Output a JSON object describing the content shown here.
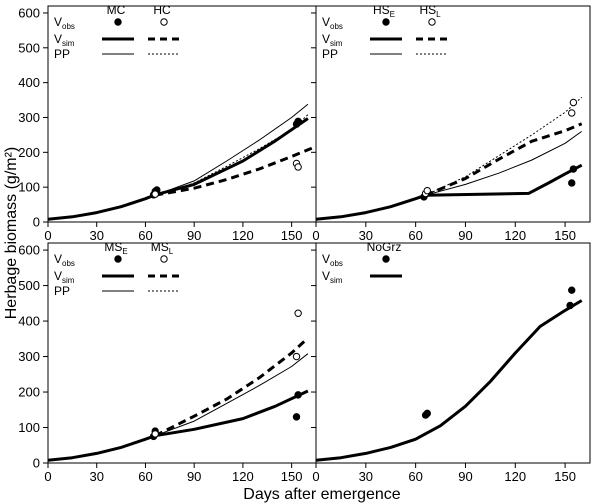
{
  "figure": {
    "ylabel": "Herbage biomass (g/m²)",
    "xlabel": "Days after emergence"
  },
  "chart_data": [
    {
      "type": "line",
      "panel": "top-left",
      "xlim": [
        0,
        165
      ],
      "ylim": [
        0,
        620
      ],
      "xticks": [
        0,
        30,
        60,
        90,
        120,
        150
      ],
      "yticks": [
        0,
        100,
        200,
        300,
        400,
        500,
        600
      ],
      "legend": {
        "placement": "top-left",
        "rows": [
          {
            "text": "V",
            "sub": "obs",
            "kind": "marker"
          },
          {
            "text": "V",
            "sub": "sim",
            "kind": "thick"
          },
          {
            "text": "PP",
            "sub": "",
            "kind": "thin"
          }
        ],
        "columns": [
          {
            "text": "MC",
            "sub": "",
            "marker": "filled"
          },
          {
            "text": "HC",
            "sub": "",
            "marker": "open"
          }
        ]
      },
      "series": [
        {
          "name": "MC",
          "role": "V_sim",
          "style": "solid-thick",
          "x": [
            0,
            15,
            30,
            45,
            60,
            66,
            90,
            120,
            140,
            160
          ],
          "y": [
            8,
            15,
            27,
            44,
            67,
            78,
            108,
            175,
            233,
            297
          ]
        },
        {
          "name": "HC",
          "role": "V_sim",
          "style": "dashed-thick",
          "x": [
            66,
            90,
            110,
            130,
            150,
            163
          ],
          "y": [
            77,
            97,
            122,
            152,
            188,
            213
          ]
        },
        {
          "name": "MC",
          "role": "PP",
          "style": "solid-thin",
          "x": [
            66,
            90,
            110,
            130,
            150,
            160
          ],
          "y": [
            77,
            118,
            175,
            235,
            300,
            338
          ]
        },
        {
          "name": "HC",
          "role": "PP",
          "style": "dotted-thin",
          "x": [
            66,
            90,
            110,
            130,
            150,
            160
          ],
          "y": [
            77,
            112,
            160,
            210,
            265,
            308
          ]
        },
        {
          "name": "MC",
          "role": "V_obs",
          "style": "filled-marker",
          "x": [
            65,
            66,
            67,
            153,
            154
          ],
          "y": [
            78,
            88,
            92,
            281,
            289
          ]
        },
        {
          "name": "HC",
          "role": "V_obs",
          "style": "open-marker",
          "x": [
            66,
            153,
            154
          ],
          "y": [
            80,
            168,
            158
          ]
        }
      ]
    },
    {
      "type": "line",
      "panel": "top-right",
      "xlim": [
        0,
        165
      ],
      "ylim": [
        0,
        620
      ],
      "xticks": [
        0,
        30,
        60,
        90,
        120,
        150
      ],
      "yticks": [
        0,
        100,
        200,
        300,
        400,
        500,
        600
      ],
      "legend": {
        "placement": "top-left",
        "rows": [
          {
            "text": "V",
            "sub": "obs",
            "kind": "marker"
          },
          {
            "text": "V",
            "sub": "sim",
            "kind": "thick"
          },
          {
            "text": "PP",
            "sub": "",
            "kind": "thin"
          }
        ],
        "columns": [
          {
            "text": "HS",
            "sub": "E",
            "marker": "filled"
          },
          {
            "text": "HS",
            "sub": "L",
            "marker": "open"
          }
        ]
      },
      "series": [
        {
          "name": "HS_E",
          "role": "V_sim",
          "style": "solid-thick",
          "x": [
            0,
            15,
            30,
            45,
            60,
            66,
            128,
            140,
            150,
            160
          ],
          "y": [
            8,
            15,
            27,
            44,
            67,
            77,
            82,
            112,
            138,
            163
          ]
        },
        {
          "name": "HS_L",
          "role": "V_sim",
          "style": "dashed-thick",
          "x": [
            66,
            90,
            110,
            130,
            150,
            160
          ],
          "y": [
            77,
            125,
            180,
            232,
            262,
            282
          ]
        },
        {
          "name": "HS_E",
          "role": "PP",
          "style": "solid-thin",
          "x": [
            66,
            90,
            110,
            130,
            150,
            160
          ],
          "y": [
            77,
            108,
            140,
            178,
            226,
            260
          ]
        },
        {
          "name": "HS_L",
          "role": "PP",
          "style": "dotted-thin",
          "x": [
            66,
            90,
            110,
            130,
            150,
            160
          ],
          "y": [
            77,
            130,
            190,
            250,
            315,
            358
          ]
        },
        {
          "name": "HS_E",
          "role": "V_obs",
          "style": "filled-marker",
          "x": [
            65,
            66,
            154,
            155
          ],
          "y": [
            72,
            80,
            112,
            152
          ]
        },
        {
          "name": "HS_L",
          "role": "V_obs",
          "style": "open-marker",
          "x": [
            66,
            67,
            154,
            155
          ],
          "y": [
            82,
            90,
            313,
            343
          ]
        }
      ]
    },
    {
      "type": "line",
      "panel": "bottom-left",
      "xlim": [
        0,
        165
      ],
      "ylim": [
        0,
        620
      ],
      "xticks": [
        0,
        30,
        60,
        90,
        120,
        150
      ],
      "yticks": [
        0,
        100,
        200,
        300,
        400,
        500,
        600
      ],
      "legend": {
        "placement": "top-left",
        "rows": [
          {
            "text": "V",
            "sub": "obs",
            "kind": "marker"
          },
          {
            "text": "V",
            "sub": "sim",
            "kind": "thick"
          },
          {
            "text": "PP",
            "sub": "",
            "kind": "thin"
          }
        ],
        "columns": [
          {
            "text": "MS",
            "sub": "E",
            "marker": "filled"
          },
          {
            "text": "MS",
            "sub": "L",
            "marker": "open"
          }
        ]
      },
      "series": [
        {
          "name": "MS_E",
          "role": "V_sim",
          "style": "solid-thick",
          "x": [
            0,
            15,
            30,
            45,
            60,
            66,
            90,
            120,
            140,
            160
          ],
          "y": [
            8,
            15,
            27,
            44,
            67,
            77,
            95,
            125,
            160,
            203
          ]
        },
        {
          "name": "MS_L",
          "role": "V_sim",
          "style": "dashed-thick",
          "x": [
            66,
            90,
            110,
            130,
            150,
            160
          ],
          "y": [
            77,
            132,
            180,
            240,
            310,
            352
          ]
        },
        {
          "name": "MS_E",
          "role": "PP",
          "style": "solid-thin",
          "x": [
            66,
            90,
            110,
            130,
            150,
            160
          ],
          "y": [
            77,
            118,
            168,
            218,
            272,
            308
          ]
        },
        {
          "name": "MS_E",
          "role": "V_obs",
          "style": "filled-marker",
          "x": [
            65,
            66,
            153,
            154
          ],
          "y": [
            75,
            90,
            130,
            192
          ]
        },
        {
          "name": "MS_L",
          "role": "V_obs",
          "style": "open-marker",
          "x": [
            66,
            153,
            154
          ],
          "y": [
            82,
            300,
            422
          ]
        }
      ]
    },
    {
      "type": "line",
      "panel": "bottom-right",
      "xlim": [
        0,
        165
      ],
      "ylim": [
        0,
        620
      ],
      "xticks": [
        0,
        30,
        60,
        90,
        120,
        150
      ],
      "yticks": [
        0,
        100,
        200,
        300,
        400,
        500,
        600
      ],
      "legend": {
        "placement": "top-left",
        "rows": [
          {
            "text": "V",
            "sub": "obs",
            "kind": "marker"
          },
          {
            "text": "V",
            "sub": "sim",
            "kind": "thick"
          }
        ],
        "columns": [
          {
            "text": "NoGrz",
            "sub": "",
            "marker": "filled"
          }
        ]
      },
      "series": [
        {
          "name": "NoGrz",
          "role": "V_sim",
          "style": "solid-thick",
          "x": [
            0,
            15,
            30,
            45,
            60,
            75,
            90,
            105,
            120,
            135,
            150,
            160
          ],
          "y": [
            8,
            15,
            27,
            44,
            67,
            105,
            160,
            230,
            310,
            385,
            430,
            458
          ]
        },
        {
          "name": "NoGrz",
          "role": "V_obs",
          "style": "filled-marker",
          "x": [
            66,
            67,
            153,
            154
          ],
          "y": [
            135,
            140,
            444,
            487
          ]
        }
      ]
    }
  ]
}
